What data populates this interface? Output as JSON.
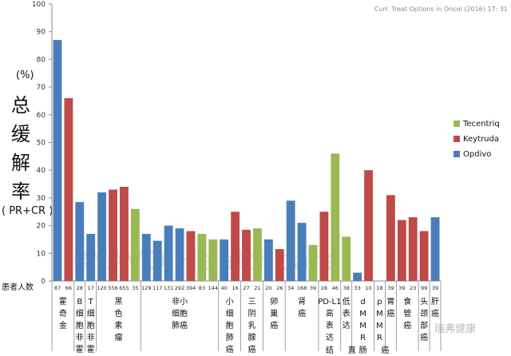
{
  "header": {
    "citation": "Curr. Treat Options in Oncol (2016) 17: 31"
  },
  "y_axis_label": {
    "unit": "(%)",
    "chars": [
      "总",
      "缓",
      "解",
      "率"
    ],
    "sub": "( PR+CR )"
  },
  "row_label": "患者人数",
  "watermarks": {
    "main": "RYAVO Healthcare",
    "corner": "瑞弗健康"
  },
  "colors": {
    "Opdivo": "#4a7ebb",
    "Keytruda": "#be4b48",
    "Tecentriq": "#98b954"
  },
  "chart_data": {
    "type": "bar",
    "ylim": [
      0,
      100
    ],
    "yticks": [
      0,
      10,
      20,
      30,
      40,
      50,
      60,
      70,
      80,
      90,
      100
    ],
    "legend": {
      "position": "right",
      "entries": [
        "Tecentriq",
        "Keytruda",
        "Opdivo"
      ]
    },
    "bars": [
      {
        "drug": "Opdivo",
        "value": 87,
        "n": "87"
      },
      {
        "drug": "Keytruda",
        "value": 66,
        "n": "66"
      },
      {
        "drug": "Opdivo",
        "value": 28.5,
        "n": "28"
      },
      {
        "drug": "Opdivo",
        "value": 17,
        "n": "17"
      },
      {
        "drug": "Opdivo",
        "value": 32,
        "n": "120"
      },
      {
        "drug": "Keytruda",
        "value": 33,
        "n": "556"
      },
      {
        "drug": "Keytruda",
        "value": 34,
        "n": "655"
      },
      {
        "drug": "Tecentriq",
        "value": 26,
        "n": "35"
      },
      {
        "drug": "Opdivo",
        "value": 17,
        "n": "129"
      },
      {
        "drug": "Opdivo",
        "value": 14.5,
        "n": "117"
      },
      {
        "drug": "Opdivo",
        "value": 20,
        "n": "131"
      },
      {
        "drug": "Opdivo",
        "value": 19,
        "n": "292"
      },
      {
        "drug": "Keytruda",
        "value": 18,
        "n": "394"
      },
      {
        "drug": "Tecentriq",
        "value": 17,
        "n": "83"
      },
      {
        "drug": "Tecentriq",
        "value": 15,
        "n": "144"
      },
      {
        "drug": "Opdivo",
        "value": 15,
        "n": "40"
      },
      {
        "drug": "Keytruda",
        "value": 25,
        "n": "16"
      },
      {
        "drug": "Keytruda",
        "value": 18.5,
        "n": "27"
      },
      {
        "drug": "Tecentriq",
        "value": 19,
        "n": "21"
      },
      {
        "drug": "Opdivo",
        "value": 15,
        "n": "20"
      },
      {
        "drug": "Keytruda",
        "value": 11.5,
        "n": "26"
      },
      {
        "drug": "Opdivo",
        "value": 29,
        "n": "34"
      },
      {
        "drug": "Opdivo",
        "value": 21,
        "n": "168"
      },
      {
        "drug": "Tecentriq",
        "value": 13,
        "n": "39"
      },
      {
        "drug": "Keytruda",
        "value": 25,
        "n": "28"
      },
      {
        "drug": "Tecentriq",
        "value": 46,
        "n": "46"
      },
      {
        "drug": "Tecentriq",
        "value": 16,
        "n": "38"
      },
      {
        "drug": "Opdivo",
        "value": 3,
        "n": "33"
      },
      {
        "drug": "Keytruda",
        "value": 40,
        "n": "10"
      },
      {
        "drug": "Keytruda",
        "value": 0,
        "n": "18"
      },
      {
        "drug": "Keytruda",
        "value": 31,
        "n": "39"
      },
      {
        "drug": "Keytruda",
        "value": 22,
        "n": "39"
      },
      {
        "drug": "Keytruda",
        "value": 23,
        "n": "23"
      },
      {
        "drug": "Keytruda",
        "value": 18,
        "n": "99"
      },
      {
        "drug": "Opdivo",
        "value": 23,
        "n": "39"
      }
    ],
    "categories": [
      {
        "chars": [
          "霍",
          "奇",
          "金"
        ],
        "first": 0,
        "last": 1,
        "rows": 1
      },
      {
        "chars": [
          "B",
          "细",
          "胞",
          "非",
          "霍"
        ],
        "first": 2,
        "last": 2,
        "rows": 1
      },
      {
        "chars": [
          "T",
          "细",
          "胞",
          "非",
          "霍"
        ],
        "first": 3,
        "last": 3,
        "rows": 1
      },
      {
        "chars": [
          "黑",
          "色",
          "素",
          "瘤"
        ],
        "first": 4,
        "last": 7,
        "rows": 1
      },
      {
        "chars": [
          "非小",
          "细胞",
          "肺癌"
        ],
        "first": 8,
        "last": 14,
        "rows": 1
      },
      {
        "chars": [
          "小",
          "细",
          "胞",
          "肺",
          "癌"
        ],
        "first": 15,
        "last": 16,
        "rows": 1
      },
      {
        "chars": [
          "三",
          "阴",
          "乳",
          "腺",
          "癌"
        ],
        "first": 17,
        "last": 18,
        "rows": 1
      },
      {
        "chars": [
          "卵",
          "巢",
          "癌"
        ],
        "first": 19,
        "last": 20,
        "rows": 1
      },
      {
        "chars": [
          "肾",
          "癌"
        ],
        "first": 21,
        "last": 23,
        "rows": 1
      },
      {
        "chars": [
          "PD-L1",
          "高",
          "表",
          "达"
        ],
        "first": 24,
        "last": 25,
        "rows": 1
      },
      {
        "chars": [
          "低",
          "表",
          "达"
        ],
        "first": 26,
        "last": 26,
        "rows": 1
      },
      {
        "chars": [
          "d",
          "M",
          "M",
          "R"
        ],
        "first": 27,
        "last": 28,
        "rows": 1
      },
      {
        "chars": [
          "p",
          "M",
          "M",
          "R"
        ],
        "first": 29,
        "last": 29,
        "rows": 1
      },
      {
        "chars": [
          "胃",
          "癌"
        ],
        "first": 30,
        "last": 30,
        "rows": 1
      },
      {
        "chars": [
          "食",
          "管",
          "癌"
        ],
        "first": 31,
        "last": 32,
        "rows": 1
      },
      {
        "chars": [
          "头",
          "颈",
          "部",
          "癌"
        ],
        "first": 33,
        "last": 33,
        "rows": 1
      },
      {
        "chars": [
          "肝",
          "癌"
        ],
        "first": 34,
        "last": 34,
        "rows": 1
      }
    ],
    "bottom_labels": [
      {
        "text": "结",
        "at": 24
      },
      {
        "text": "直",
        "at": 26
      },
      {
        "text": "肠",
        "at": 27
      },
      {
        "text": "癌",
        "at": 29
      }
    ]
  }
}
